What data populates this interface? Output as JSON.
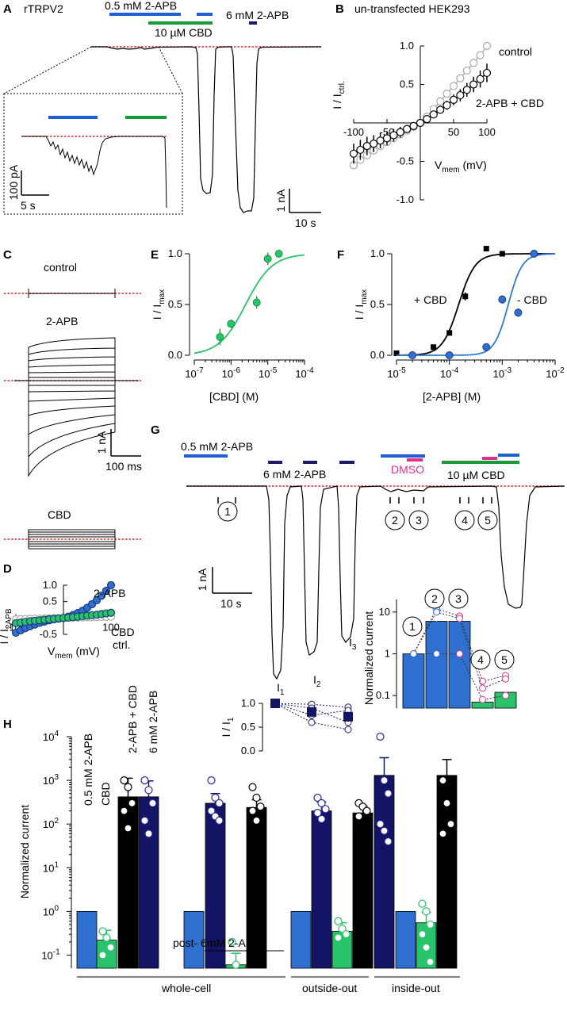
{
  "panels": {
    "A": {
      "letter": "A",
      "title": "rTRPV2",
      "bars": [
        {
          "label": "0.5 mM 2-APB",
          "color": "#1f5fd6"
        },
        {
          "label": "10 µM CBD",
          "color": "#1a9b3a"
        },
        {
          "label": "6 mM 2-APB",
          "color": "#1a1a6e"
        }
      ],
      "inset_scale": {
        "y": "100 pA",
        "x": "5 s"
      },
      "scale": {
        "y": "1 nA",
        "x": "10 s"
      }
    },
    "B": {
      "letter": "B",
      "title": "un-transfected HEK293"
    },
    "C": {
      "letter": "C",
      "labels": [
        "control",
        "2-APB",
        "CBD"
      ],
      "scale": {
        "y": "1 nA",
        "x": "100 ms"
      }
    },
    "D": {
      "letter": "D"
    },
    "E": {
      "letter": "E"
    },
    "F": {
      "letter": "F"
    },
    "G": {
      "letter": "G",
      "labels": {
        "low_2apb": "0.5 mM 2-APB",
        "high_2apb": "6 mM 2-APB",
        "dmso": "DMSO",
        "cbd": "10 µM CBD"
      },
      "markers": [
        "1",
        "2",
        "3",
        "4",
        "5"
      ],
      "peaks": [
        "I1",
        "I2",
        "I3"
      ],
      "scale": {
        "y": "1 nA",
        "x": "10 s"
      }
    },
    "H": {
      "letter": "H",
      "bar_labels": [
        "0.5 mM 2-APB",
        "CBD",
        "2-APB + CBD",
        "6 mM 2-APB"
      ],
      "post_label": "post- 6mM 2-APB",
      "group_labels": [
        "whole-cell",
        "outside-out",
        "inside-out"
      ]
    }
  },
  "colors": {
    "blue": "#2e6fd0",
    "navy": "#141466",
    "green": "#28c36a",
    "black": "#000000",
    "red_baseline": "#e0202a",
    "gray": "#a8a8a8",
    "pink": "#e0308a",
    "dark_green": "#1a9b3a",
    "fit_blue": "#2f7ad8"
  },
  "chart_data": [
    {
      "id": "B",
      "type": "line",
      "xlabel_base": "V",
      "xlabel_sub": "mem",
      "xlabel_unit": " (mV)",
      "ylabel_base": "I / I",
      "ylabel_sub": "ctrl.",
      "xlim": [
        -100,
        100
      ],
      "ylim": [
        -1,
        1
      ],
      "xticks": [
        -100,
        -50,
        50,
        100
      ],
      "yticks": [
        -1.0,
        -0.5,
        0.5,
        1.0
      ],
      "xtick_labels": [
        "-100",
        "-50",
        "50",
        "100"
      ],
      "ytick_labels": [
        "-1.0",
        "-0.5",
        "0.5",
        "1.0"
      ],
      "series": [
        {
          "name": "control",
          "color": "#a8a8a8",
          "fill": "#ffffff",
          "x": [
            -100,
            -90,
            -80,
            -70,
            -60,
            -50,
            -40,
            -30,
            -20,
            -10,
            0,
            10,
            20,
            30,
            40,
            50,
            60,
            70,
            80,
            90,
            100
          ],
          "y": [
            -0.55,
            -0.48,
            -0.42,
            -0.36,
            -0.3,
            -0.25,
            -0.2,
            -0.15,
            -0.1,
            -0.05,
            0,
            0.08,
            0.18,
            0.28,
            0.38,
            0.48,
            0.58,
            0.68,
            0.78,
            0.88,
            1.0
          ]
        },
        {
          "name": "2-APB + CBD",
          "color": "#000000",
          "fill": "#ffffff",
          "x": [
            -100,
            -90,
            -80,
            -70,
            -60,
            -50,
            -40,
            -30,
            -20,
            -10,
            0,
            10,
            20,
            30,
            40,
            50,
            60,
            70,
            80,
            90,
            100
          ],
          "y": [
            -0.4,
            -0.35,
            -0.3,
            -0.27,
            -0.23,
            -0.2,
            -0.16,
            -0.12,
            -0.08,
            -0.04,
            0,
            0.05,
            0.11,
            0.17,
            0.23,
            0.3,
            0.36,
            0.43,
            0.5,
            0.57,
            0.65
          ],
          "err": [
            0.13,
            0.13,
            0.12,
            0.11,
            0.1,
            0.09,
            0.08,
            0.07,
            0.05,
            0.03,
            0,
            0.03,
            0.04,
            0.05,
            0.06,
            0.07,
            0.08,
            0.09,
            0.1,
            0.11,
            0.12
          ]
        }
      ]
    },
    {
      "id": "D",
      "type": "line",
      "xlabel_base": "V",
      "xlabel_sub": "mem",
      "xlabel_unit": " (mV)",
      "ylabel_base": "I / I",
      "ylabel_sub": "2APB",
      "xlim": [
        -100,
        100
      ],
      "ylim": [
        -0.5,
        1
      ],
      "xticks": [
        -100,
        100
      ],
      "yticks": [
        -0.5,
        0.5,
        1.0
      ],
      "xtick_labels": [
        "-100",
        "100"
      ],
      "ytick_labels": [
        "-0.5",
        "0.5",
        "1.0"
      ],
      "series": [
        {
          "name": "ctrl.",
          "color": "#a8a8a8",
          "fill": "#ffffff",
          "x": [
            -100,
            -90,
            -80,
            -70,
            -60,
            -50,
            -40,
            -30,
            -20,
            -10,
            0,
            10,
            20,
            30,
            40,
            50,
            60,
            70,
            80,
            90,
            100
          ],
          "y": [
            -0.04,
            -0.035,
            -0.03,
            -0.026,
            -0.022,
            -0.018,
            -0.014,
            -0.01,
            -0.006,
            -0.003,
            0,
            0.004,
            0.008,
            0.012,
            0.016,
            0.02,
            0.024,
            0.028,
            0.032,
            0.036,
            0.04
          ]
        },
        {
          "name": "2-APB",
          "color": "#2e6fd0",
          "fill": "#2e6fd0",
          "x": [
            -100,
            -90,
            -80,
            -70,
            -60,
            -50,
            -40,
            -30,
            -20,
            -10,
            0,
            10,
            20,
            30,
            40,
            50,
            60,
            70,
            80,
            90,
            100
          ],
          "y": [
            -0.45,
            -0.38,
            -0.31,
            -0.25,
            -0.2,
            -0.15,
            -0.11,
            -0.07,
            -0.04,
            -0.02,
            0,
            0.04,
            0.09,
            0.15,
            0.22,
            0.31,
            0.42,
            0.54,
            0.68,
            0.83,
            1.0
          ],
          "err": [
            0.04,
            0.03,
            0.03,
            0.02,
            0.02,
            0.02,
            0.01,
            0.01,
            0.01,
            0.01,
            0,
            0.01,
            0.01,
            0.01,
            0.01,
            0.01,
            0.01,
            0.01,
            0.01,
            0.01,
            0.0
          ]
        },
        {
          "name": "CBD",
          "color": "#28c36a",
          "fill": "#28c36a",
          "x": [
            -100,
            -90,
            -80,
            -70,
            -60,
            -50,
            -40,
            -30,
            -20,
            -10,
            0,
            10,
            20,
            30,
            40,
            50,
            60,
            70,
            80,
            90,
            100
          ],
          "y": [
            -0.16,
            -0.14,
            -0.12,
            -0.1,
            -0.085,
            -0.07,
            -0.055,
            -0.04,
            -0.025,
            -0.012,
            0,
            0.012,
            0.025,
            0.04,
            0.055,
            0.07,
            0.085,
            0.1,
            0.12,
            0.14,
            0.16
          ]
        }
      ]
    },
    {
      "id": "E",
      "type": "scatter",
      "xlabel": "[CBD] (M)",
      "ylabel_base": "I / I",
      "ylabel_sub": "max",
      "xscale": "log",
      "xlim": [
        -7,
        -4
      ],
      "ylim": [
        0,
        1
      ],
      "xtick_exps": [
        -7,
        -6,
        -5,
        -4
      ],
      "yticks": [
        0.0,
        0.5,
        1.0
      ],
      "ytick_labels": [
        "0.0",
        "0.5",
        "1.0"
      ],
      "series": [
        {
          "name": "CBD",
          "color": "#1a9b3a",
          "fill": "#28c36a",
          "x": [
            5e-07,
            1e-06,
            5e-06,
            1e-05,
            2e-05
          ],
          "y": [
            0.18,
            0.31,
            0.52,
            0.95,
            1.0
          ],
          "err": [
            0.08,
            0.04,
            0.06,
            0.06,
            0.0
          ],
          "fit": {
            "ec50": 2.5e-06,
            "hill": 1.2,
            "color": "#28c36a"
          }
        }
      ]
    },
    {
      "id": "F",
      "type": "scatter",
      "xlabel": "[2-APB] (M)",
      "ylabel_base": "I / I",
      "ylabel_sub": "max",
      "xscale": "log",
      "xlim": [
        -5,
        -2
      ],
      "ylim": [
        0,
        1
      ],
      "xtick_exps": [
        -5,
        -4,
        -3,
        -2
      ],
      "yticks": [
        0.0,
        0.5,
        1.0
      ],
      "ytick_labels": [
        "0.0",
        "0.5",
        "1.0"
      ],
      "series": [
        {
          "name": "+ CBD",
          "color": "#000000",
          "fill": "#000000",
          "x": [
            1e-05,
            5e-05,
            0.0001,
            0.0002,
            0.0005,
            0.001
          ],
          "y": [
            0.02,
            0.08,
            0.22,
            0.58,
            1.05,
            1.0
          ],
          "err": [
            0.0,
            0.01,
            0.02,
            0.04,
            0.02,
            0.0
          ],
          "fit": {
            "ec50": 0.00015,
            "hill": 2.8,
            "color": "#000000"
          }
        },
        {
          "name": "- CBD",
          "color": "#1a3a8a",
          "fill": "#2e6fd0",
          "x": [
            2e-05,
            0.0001,
            0.0005,
            0.001,
            0.002,
            0.004
          ],
          "y": [
            0.0,
            0.0,
            0.08,
            0.55,
            0.42,
            1.0
          ],
          "err": [
            0.0,
            0.0,
            0.01,
            0.04,
            0.04,
            0.0
          ],
          "fit": {
            "ec50": 0.0013,
            "hill": 3.3,
            "color": "#2f7ad8"
          }
        }
      ]
    },
    {
      "id": "G-peaks",
      "type": "scatter",
      "ylabel_base": "I / I",
      "ylabel_sub": "1",
      "ylim": [
        0,
        1
      ],
      "yticks": [
        0.0,
        0.5,
        1.0
      ],
      "ytick_labels": [
        "0.0",
        "0.5",
        "1.0"
      ],
      "categories": [
        "I1",
        "I2",
        "I3"
      ],
      "means": [
        1.0,
        0.82,
        0.72
      ],
      "err": [
        0.0,
        0.08,
        0.1
      ],
      "cells": [
        [
          1.0,
          0.98,
          0.92
        ],
        [
          1.0,
          0.75,
          0.85
        ],
        [
          1.0,
          0.6,
          0.45
        ],
        [
          1.0,
          0.9,
          0.6
        ]
      ]
    },
    {
      "id": "G-norm",
      "type": "bar",
      "ylabel": "Normalized current",
      "yscale": "log",
      "ylim": [
        0.05,
        20
      ],
      "yticks": [
        0.1,
        1,
        10
      ],
      "ytick_labels": [
        "0.1",
        "1",
        "10"
      ],
      "categories": [
        "1",
        "2",
        "3",
        "4",
        "5"
      ],
      "values": [
        1.0,
        6.0,
        6.0,
        0.07,
        0.12
      ],
      "err": [
        0.0,
        2.0,
        4.5,
        0.05,
        0.08
      ],
      "colors": [
        "#2e6fd0",
        "#2e6fd0",
        "#2e6fd0",
        "#28c36a",
        "#28c36a"
      ],
      "cells": [
        [
          1,
          12,
          8,
          0.22,
          0.3
        ],
        [
          1,
          10,
          7,
          0.15,
          0.25
        ],
        [
          1,
          1.0,
          1.0,
          0.08,
          0.1
        ]
      ]
    },
    {
      "id": "H",
      "type": "bar",
      "ylabel": "Normalized current",
      "yscale": "log",
      "ylim_exp": [
        -1.3,
        4
      ],
      "ytick_exps": [
        -1,
        0,
        1,
        2,
        3,
        4
      ],
      "values": [
        1.0,
        0.22,
        420,
        420,
        1.0,
        300,
        0.06,
        240,
        1.0,
        200,
        0.35,
        180,
        1300,
        1.0,
        0.55,
        1300
      ],
      "err_up": [
        0,
        0.15,
        700,
        550,
        0,
        200,
        0.05,
        120,
        0,
        120,
        0.2,
        80,
        2000,
        0,
        0.4,
        1700
      ],
      "colors": [
        "#2e6fd0",
        "#28c36a",
        "#000000",
        "#141466",
        "#2e6fd0",
        "#141466",
        "#28c36a",
        "#000000",
        "#2e6fd0",
        "#141466",
        "#28c36a",
        "#000000",
        "#141466",
        "#2e6fd0",
        "#28c36a",
        "#000000"
      ],
      "cells": [
        [
          1
        ],
        [
          0.35,
          0.25,
          0.15,
          0.1
        ],
        [
          1000,
          700,
          300,
          200,
          80
        ],
        [
          1000,
          600,
          300,
          120,
          60
        ],
        [
          1
        ],
        [
          1000,
          400,
          300,
          200,
          150,
          120
        ],
        [
          0.2,
          0.06
        ],
        [
          700,
          400,
          250,
          200,
          120
        ],
        [
          1
        ],
        [
          400,
          300,
          220,
          180,
          130
        ],
        [
          0.6,
          0.4,
          0.3,
          0.25
        ],
        [
          300,
          250,
          200,
          150
        ],
        [
          10000,
          1000,
          500,
          100,
          70,
          40
        ],
        [
          1
        ],
        [
          1.5,
          1.0,
          0.5,
          0.3,
          0.15,
          0.07
        ],
        [
          1000,
          300,
          100,
          60
        ]
      ]
    }
  ]
}
